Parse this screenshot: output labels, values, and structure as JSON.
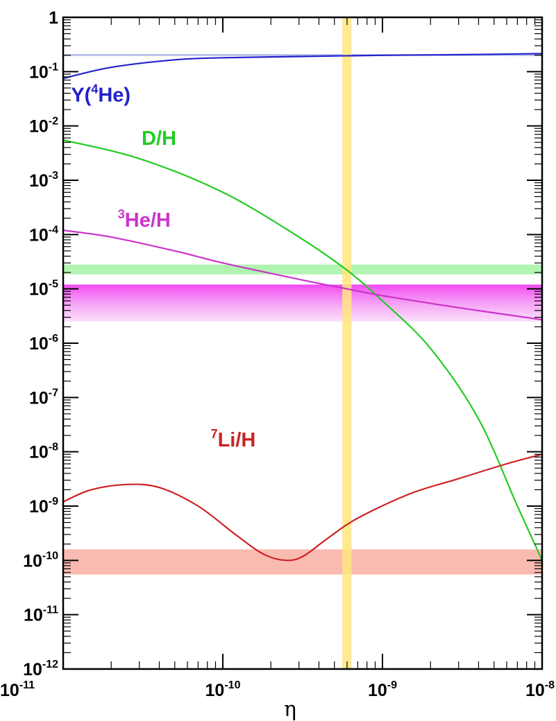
{
  "chart_data": {
    "type": "line",
    "xlabel": "η",
    "ylabel": "",
    "xscale": "log",
    "yscale": "log",
    "xlim": [
      1e-11,
      1e-08
    ],
    "ylim": [
      1e-12,
      1
    ],
    "grid": false,
    "x_ticks": [
      {
        "base": "10",
        "exp": "-11",
        "value": 1e-11
      },
      {
        "base": "10",
        "exp": "-10",
        "value": 1e-10
      },
      {
        "base": "10",
        "exp": "-9",
        "value": 1e-09
      },
      {
        "base": "10",
        "exp": "-8",
        "value": 1e-08
      }
    ],
    "y_ticks": [
      {
        "base": "1",
        "exp": "",
        "value": 1
      },
      {
        "base": "10",
        "exp": "-1",
        "value": 0.1
      },
      {
        "base": "10",
        "exp": "-2",
        "value": 0.01
      },
      {
        "base": "10",
        "exp": "-3",
        "value": 0.001
      },
      {
        "base": "10",
        "exp": "-4",
        "value": 0.0001
      },
      {
        "base": "10",
        "exp": "-5",
        "value": 1e-05
      },
      {
        "base": "10",
        "exp": "-6",
        "value": 1e-06
      },
      {
        "base": "10",
        "exp": "-7",
        "value": 1e-07
      },
      {
        "base": "10",
        "exp": "-8",
        "value": 1e-08
      },
      {
        "base": "10",
        "exp": "-9",
        "value": 1e-09
      },
      {
        "base": "10",
        "exp": "-10",
        "value": 1e-10
      },
      {
        "base": "10",
        "exp": "-11",
        "value": 1e-11
      },
      {
        "base": "10",
        "exp": "-12",
        "value": 1e-12
      }
    ],
    "series": [
      {
        "key": "he4",
        "label_pre": "Y(",
        "label_sup": "4",
        "label_post": "He)",
        "color": "#2222cc",
        "label_at": [
          1.12e-11,
          0.028
        ],
        "points": [
          [
            1e-11,
            0.075
          ],
          [
            2e-11,
            0.12
          ],
          [
            5e-11,
            0.165
          ],
          [
            1e-10,
            0.18
          ],
          [
            3e-10,
            0.19
          ],
          [
            1e-09,
            0.2
          ],
          [
            3e-09,
            0.205
          ],
          [
            1e-08,
            0.215
          ]
        ]
      },
      {
        "key": "dh",
        "label_pre": "D/H",
        "label_sup": "",
        "label_post": "",
        "color": "#22cc22",
        "label_at": [
          3.1e-11,
          0.0045
        ],
        "points": [
          [
            1e-11,
            0.0055
          ],
          [
            3e-11,
            0.0025
          ],
          [
            1e-10,
            0.0006
          ],
          [
            3e-10,
            9e-05
          ],
          [
            6e-10,
            2.2e-05
          ],
          [
            1e-09,
            6e-06
          ],
          [
            2e-09,
            8e-07
          ],
          [
            4e-09,
            4e-08
          ],
          [
            7e-09,
            1e-09
          ],
          [
            1e-08,
            1e-10
          ]
        ]
      },
      {
        "key": "he3",
        "label_pre": "",
        "label_sup": "3",
        "label_post": "He/H",
        "color": "#cc33cc",
        "label_at": [
          2.2e-11,
          0.00014
        ],
        "points": [
          [
            1e-11,
            0.00012
          ],
          [
            2e-11,
            9e-05
          ],
          [
            5e-11,
            5e-05
          ],
          [
            1e-10,
            3e-05
          ],
          [
            3e-10,
            1.5e-05
          ],
          [
            6e-10,
            1e-05
          ],
          [
            1e-09,
            7.5e-06
          ],
          [
            3e-09,
            4.5e-06
          ],
          [
            1e-08,
            2.7e-06
          ]
        ]
      },
      {
        "key": "li7",
        "label_pre": "",
        "label_sup": "7",
        "label_post": "Li/H",
        "color": "#cc2222",
        "label_at": [
          8.4e-11,
          1.25e-08
        ],
        "points": [
          [
            1e-11,
            1.2e-09
          ],
          [
            1.5e-11,
            2e-09
          ],
          [
            2.5e-11,
            2.5e-09
          ],
          [
            4e-11,
            2.2e-09
          ],
          [
            7e-11,
            1e-09
          ],
          [
            1.2e-10,
            3e-10
          ],
          [
            1.8e-10,
            1.3e-10
          ],
          [
            2.5e-10,
            1e-10
          ],
          [
            3.2e-10,
            1.2e-10
          ],
          [
            4.5e-10,
            2.5e-10
          ],
          [
            7e-10,
            6e-10
          ],
          [
            1.5e-09,
            1.7e-09
          ],
          [
            3e-09,
            3.2e-09
          ],
          [
            6e-09,
            6e-09
          ],
          [
            1e-08,
            9e-09
          ]
        ]
      }
    ],
    "bands": [
      {
        "key": "he4-band",
        "orientation": "horizontal",
        "range": [
          0.195,
          0.21
        ],
        "color": "#aab0e6",
        "opacity": 0.9,
        "gradient": false
      },
      {
        "key": "dh-band",
        "orientation": "horizontal",
        "range": [
          1.85e-05,
          2.8e-05
        ],
        "color": "#9ef09e",
        "opacity": 0.8,
        "gradient": false
      },
      {
        "key": "he3-band",
        "orientation": "horizontal",
        "range": [
          2.5e-06,
          1.2e-05
        ],
        "color": "#f060f0",
        "opacity": 0.85,
        "gradient": true
      },
      {
        "key": "li7-band",
        "orientation": "horizontal",
        "range": [
          5.5e-11,
          1.6e-10
        ],
        "color": "#f8b4a8",
        "opacity": 0.9,
        "gradient": false
      },
      {
        "key": "eta-band",
        "orientation": "vertical",
        "range": [
          5.6e-10,
          6.4e-10
        ],
        "color": "#ffe680",
        "opacity": 0.85,
        "gradient": false
      }
    ]
  }
}
